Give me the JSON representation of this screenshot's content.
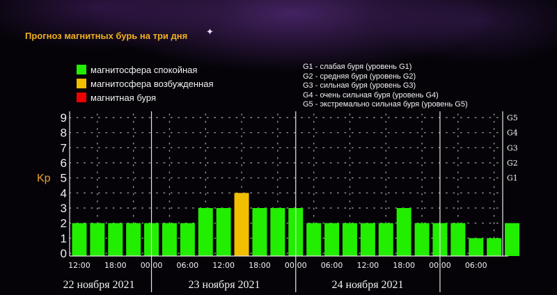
{
  "title": "Прогноз магнитных бурь на три дня",
  "legend": [
    {
      "label": "магнитосфера спокойная",
      "color": "#22ee00"
    },
    {
      "label": "магнитосфера возбужденная",
      "color": "#f2be00"
    },
    {
      "label": "магнитная буря",
      "color": "#ee0000"
    }
  ],
  "storm_levels": [
    "G1 - слабая буря (уровень G1)",
    "G2 - средняя буря (уровень G2)",
    "G3 - сильная буря (уровень G3)",
    "G4 - очень сильная буря (уровень G4)",
    "G5 - экстремально сильная буря (уровень G5)"
  ],
  "colors": {
    "calm": "#22ee00",
    "excited": "#f2be00",
    "storm": "#ee0000",
    "title": "#f0b020",
    "kp_label": "#f0a030"
  },
  "chart_data": {
    "type": "bar",
    "ylabel": "Kp",
    "ylim": [
      0,
      9
    ],
    "yticks": [
      0,
      1,
      2,
      3,
      4,
      5,
      6,
      7,
      8,
      9
    ],
    "g_levels": [
      {
        "label": "G1",
        "kp": 5
      },
      {
        "label": "G2",
        "kp": 6
      },
      {
        "label": "G3",
        "kp": 7
      },
      {
        "label": "G4",
        "kp": 8
      },
      {
        "label": "G5",
        "kp": 9
      }
    ],
    "interval_hours": 3,
    "values": [
      2,
      2,
      2,
      2,
      2,
      2,
      2,
      3,
      3,
      4,
      3,
      3,
      3,
      2,
      2,
      2,
      2,
      2,
      3,
      2,
      2,
      2,
      1,
      1,
      2
    ],
    "x_tick_labels": [
      "12:00",
      "18:00",
      "00:00",
      "06:00",
      "12:00",
      "18:00",
      "00:00",
      "06:00",
      "12:00",
      "18:00",
      "00:00",
      "06:00"
    ],
    "day_labels": [
      "22 ноября 2021",
      "23 ноября 2021",
      "24 ноября 2021"
    ],
    "grid": true
  }
}
